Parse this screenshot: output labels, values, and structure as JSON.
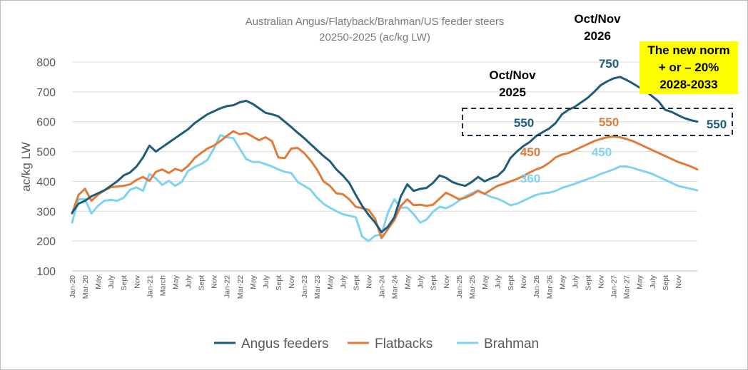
{
  "chart_data": {
    "type": "line",
    "title": "Australian Angus/Flatyback/Brahman/US feeder steers",
    "subtitle": "20250-2025 (ac/kg LW)",
    "xlabel": "",
    "ylabel": "ac/kg LW",
    "ylim": [
      100,
      800
    ],
    "yticks": [
      100,
      200,
      300,
      400,
      500,
      600,
      700,
      800
    ],
    "grid": "horizontal",
    "legend_position": "bottom",
    "x_tick_labels": [
      "Jan-20",
      "Mar-20",
      "May",
      "July",
      "Sept",
      "Nov",
      "Jan-21",
      "March",
      "May",
      "July",
      "Sept",
      "Nov",
      "Jan-22",
      "Mar-22",
      "May",
      "July",
      "Sept",
      "Nov",
      "Jan-23",
      "Mar-23",
      "May",
      "July",
      "Sept",
      "Nov",
      "Jan-24",
      "Mar-24",
      "May",
      "July",
      "Sept",
      "Nov",
      "Jan-25",
      "Mar-25",
      "May",
      "July",
      "Sept",
      "Nov",
      "Jan-26",
      "Mar-26",
      "May",
      "July",
      "Sept",
      "Nov",
      "Jan-27",
      "Mar-27",
      "May",
      "July",
      "Sept",
      "Nov"
    ],
    "series": [
      {
        "name": "Angus feeders",
        "color": "#1f5c7a",
        "values": [
          295,
          325,
          335,
          350,
          360,
          370,
          385,
          400,
          420,
          430,
          450,
          480,
          520,
          500,
          515,
          530,
          545,
          560,
          575,
          595,
          610,
          625,
          635,
          645,
          652,
          655,
          665,
          670,
          660,
          645,
          630,
          625,
          618,
          600,
          582,
          563,
          545,
          525,
          505,
          485,
          468,
          440,
          420,
          395,
          355,
          318,
          288,
          262,
          230,
          248,
          280,
          350,
          390,
          368,
          375,
          378,
          395,
          420,
          412,
          398,
          390,
          385,
          398,
          415,
          400,
          410,
          418,
          438,
          478,
          500,
          518,
          532,
          552,
          565,
          577,
          595,
          625,
          640,
          650,
          665,
          680,
          700,
          722,
          735,
          745,
          750,
          740,
          728,
          715,
          702,
          685,
          668,
          640,
          633,
          622,
          612,
          605,
          600
        ]
      },
      {
        "name": "Flatbacks",
        "color": "#e07b39",
        "values": [
          292,
          355,
          375,
          335,
          355,
          370,
          380,
          383,
          385,
          390,
          405,
          415,
          402,
          432,
          440,
          428,
          442,
          435,
          452,
          478,
          495,
          510,
          520,
          535,
          552,
          568,
          558,
          562,
          550,
          538,
          548,
          535,
          480,
          478,
          510,
          512,
          495,
          470,
          440,
          400,
          385,
          360,
          357,
          340,
          315,
          310,
          305,
          275,
          210,
          240,
          270,
          318,
          340,
          320,
          322,
          318,
          322,
          342,
          362,
          352,
          340,
          345,
          355,
          368,
          358,
          372,
          385,
          392,
          400,
          408,
          418,
          430,
          440,
          448,
          462,
          480,
          490,
          495,
          505,
          515,
          525,
          535,
          542,
          548,
          550,
          548,
          542,
          535,
          525,
          515,
          505,
          495,
          485,
          475,
          465,
          458,
          450,
          440
        ]
      },
      {
        "name": "Brahman",
        "color": "#7fd3f0",
        "values": [
          262,
          340,
          340,
          292,
          318,
          335,
          338,
          335,
          345,
          372,
          380,
          368,
          425,
          410,
          388,
          402,
          385,
          398,
          435,
          448,
          458,
          472,
          510,
          555,
          548,
          545,
          510,
          475,
          465,
          465,
          458,
          450,
          440,
          432,
          428,
          398,
          385,
          372,
          345,
          325,
          312,
          300,
          290,
          285,
          280,
          215,
          200,
          218,
          222,
          295,
          340,
          312,
          312,
          290,
          262,
          272,
          298,
          315,
          310,
          320,
          335,
          350,
          360,
          370,
          358,
          348,
          342,
          332,
          320,
          325,
          335,
          345,
          355,
          360,
          362,
          368,
          378,
          385,
          392,
          400,
          408,
          415,
          425,
          432,
          440,
          450,
          450,
          445,
          438,
          432,
          425,
          415,
          405,
          395,
          385,
          380,
          375,
          370
        ]
      }
    ],
    "annotations": {
      "oct_nov_2025_line1": "Oct/Nov",
      "oct_nov_2025_line2": "2025",
      "oct_nov_2026_line1": "Oct/Nov",
      "oct_nov_2026_line2": "2026",
      "new_norm_line1": "The new norm",
      "new_norm_line2": "+ or – 20%",
      "new_norm_line3": "2028-2033",
      "highlight_color": "#ffff00",
      "angus_2025": "550",
      "angus_2026": "750",
      "angus_end": "550",
      "flatbacks_2025": "450",
      "flatbacks_2026": "550",
      "brahman_2025": "360",
      "brahman_2026": "450"
    }
  }
}
